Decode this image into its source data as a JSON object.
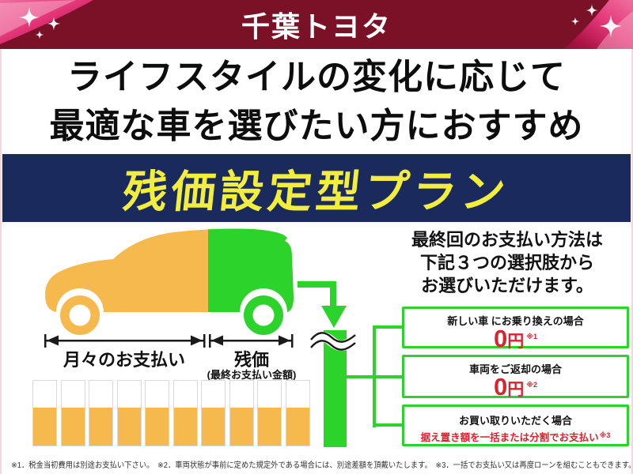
{
  "header": {
    "logo_text": "千葉トヨタ"
  },
  "headline": {
    "line1": "ライフスタイルの変化に応じて",
    "line2": "最適な車を選びたい方におすすめ"
  },
  "banner": {
    "title": "残価設定型プラン"
  },
  "diagram": {
    "monthly_label": "月々のお支払い",
    "residual_label": "残価",
    "residual_sublabel": "(最終お支払い金額)",
    "payment_bars_count": 10
  },
  "options_panel": {
    "heading_lines": [
      "最終回のお支払い方法は",
      "下記３つの選択肢から",
      "お選びいただけます。"
    ],
    "options": [
      {
        "condition": "新しい車 にお乗り換えの場合",
        "price": "0",
        "unit": "円",
        "note_ref": "※1"
      },
      {
        "condition": "車両をご返却の場合",
        "price": "0",
        "unit": "円",
        "note_ref": "※2"
      },
      {
        "condition": "お買い取りいただく場合",
        "detail": "据え置き額を一括または分割でお支払い",
        "note_ref": "※3"
      }
    ]
  },
  "footnotes": "※1．税金当初費用は別途お支払い下さい。　※2．車両状態が事前に定めた規定外である場合には、別途差額を頂戴いたします。　※3．一括でお支払い又は再度ローンを組むこともできます。",
  "colors": {
    "maroon": "#7a1127",
    "ribbon_pink": "#e23577",
    "navy": "#1b2a5c",
    "banner_yellow": "#f2ee3e",
    "orange": "#f5b94e",
    "green": "#2bd32b",
    "price_red": "#d9232e",
    "text_black": "#111111"
  }
}
